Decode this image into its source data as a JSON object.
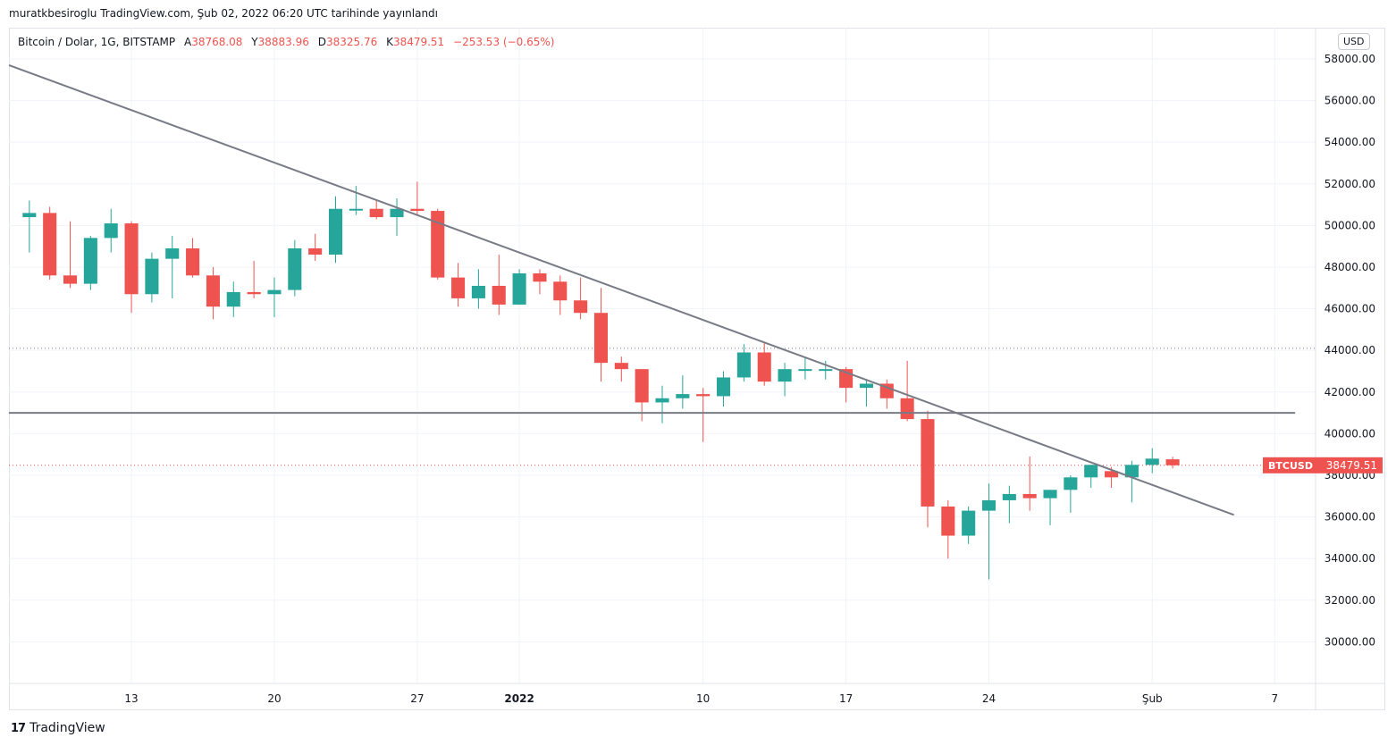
{
  "header": {
    "published": "muratkbesiroglu TradingView.com, Şub 02, 2022 06:20 UTC tarihinde yayınlandı"
  },
  "legend": {
    "symbol": "Bitcoin / Dolar, 1G, BITSTAMP",
    "open_label": "A",
    "open": "38768.08",
    "high_label": "Y",
    "high": "38883.96",
    "low_label": "D",
    "low": "38325.76",
    "close_label": "K",
    "close": "38479.51",
    "change": "−253.53 (−0.65%)"
  },
  "currency_button": "USD",
  "price_tag": {
    "ticker": "BTCUSD",
    "value": "38479.51"
  },
  "footer": {
    "brand": "TradingView",
    "logo_mark": "17"
  },
  "colors": {
    "up": "#26a69a",
    "down": "#ef5350",
    "trendline": "#787b86",
    "grid": "#f0f3fa"
  },
  "chart_data": {
    "type": "candlestick",
    "y_range": [
      28000,
      59500
    ],
    "y_ticks": [
      "30000.00",
      "32000.00",
      "34000.00",
      "36000.00",
      "38000.00",
      "40000.00",
      "42000.00",
      "44000.00",
      "46000.00",
      "48000.00",
      "50000.00",
      "52000.00",
      "54000.00",
      "56000.00",
      "58000.00"
    ],
    "x_range": [
      "2021-12-07",
      "2022-02-09"
    ],
    "x_ticks": [
      {
        "date": "2021-12-13",
        "label": "13",
        "bold": false
      },
      {
        "date": "2021-12-20",
        "label": "20",
        "bold": false
      },
      {
        "date": "2021-12-27",
        "label": "27",
        "bold": false
      },
      {
        "date": "2022-01-01",
        "label": "2022",
        "bold": true
      },
      {
        "date": "2022-01-10",
        "label": "10",
        "bold": false
      },
      {
        "date": "2022-01-17",
        "label": "17",
        "bold": false
      },
      {
        "date": "2022-01-24",
        "label": "24",
        "bold": false
      },
      {
        "date": "2022-02-01",
        "label": "Şub",
        "bold": false
      },
      {
        "date": "2022-02-07",
        "label": "7",
        "bold": false
      }
    ],
    "candles": [
      {
        "d": "2021-12-08",
        "o": 50400,
        "h": 51200,
        "l": 48700,
        "c": 50600
      },
      {
        "d": "2021-12-09",
        "o": 50600,
        "h": 50900,
        "l": 47400,
        "c": 47600
      },
      {
        "d": "2021-12-10",
        "o": 47600,
        "h": 50200,
        "l": 47000,
        "c": 47200
      },
      {
        "d": "2021-12-11",
        "o": 47200,
        "h": 49500,
        "l": 46900,
        "c": 49400
      },
      {
        "d": "2021-12-12",
        "o": 49400,
        "h": 50800,
        "l": 48700,
        "c": 50100
      },
      {
        "d": "2021-12-13",
        "o": 50100,
        "h": 50200,
        "l": 45800,
        "c": 46700
      },
      {
        "d": "2021-12-14",
        "o": 46700,
        "h": 48700,
        "l": 46300,
        "c": 48400
      },
      {
        "d": "2021-12-15",
        "o": 48400,
        "h": 49500,
        "l": 46500,
        "c": 48900
      },
      {
        "d": "2021-12-16",
        "o": 48900,
        "h": 49400,
        "l": 47500,
        "c": 47600
      },
      {
        "d": "2021-12-17",
        "o": 47600,
        "h": 48000,
        "l": 45500,
        "c": 46100
      },
      {
        "d": "2021-12-18",
        "o": 46100,
        "h": 47300,
        "l": 45600,
        "c": 46800
      },
      {
        "d": "2021-12-19",
        "o": 46800,
        "h": 48300,
        "l": 46500,
        "c": 46700
      },
      {
        "d": "2021-12-20",
        "o": 46700,
        "h": 47500,
        "l": 45600,
        "c": 46900
      },
      {
        "d": "2021-12-21",
        "o": 46900,
        "h": 49300,
        "l": 46600,
        "c": 48900
      },
      {
        "d": "2021-12-22",
        "o": 48900,
        "h": 49600,
        "l": 48300,
        "c": 48600
      },
      {
        "d": "2021-12-23",
        "o": 48600,
        "h": 51400,
        "l": 48200,
        "c": 50800
      },
      {
        "d": "2021-12-24",
        "o": 50800,
        "h": 51900,
        "l": 50500,
        "c": 50800
      },
      {
        "d": "2021-12-25",
        "o": 50800,
        "h": 51200,
        "l": 50300,
        "c": 50400
      },
      {
        "d": "2021-12-26",
        "o": 50400,
        "h": 51300,
        "l": 49500,
        "c": 50800
      },
      {
        "d": "2021-12-27",
        "o": 50800,
        "h": 52100,
        "l": 50500,
        "c": 50700
      },
      {
        "d": "2021-12-28",
        "o": 50700,
        "h": 50800,
        "l": 47400,
        "c": 47500
      },
      {
        "d": "2021-12-29",
        "o": 47500,
        "h": 48200,
        "l": 46100,
        "c": 46500
      },
      {
        "d": "2021-12-30",
        "o": 46500,
        "h": 47900,
        "l": 46000,
        "c": 47100
      },
      {
        "d": "2021-12-31",
        "o": 47100,
        "h": 48600,
        "l": 45700,
        "c": 46200
      },
      {
        "d": "2022-01-01",
        "o": 46200,
        "h": 47900,
        "l": 46200,
        "c": 47700
      },
      {
        "d": "2022-01-02",
        "o": 47700,
        "h": 47900,
        "l": 46700,
        "c": 47300
      },
      {
        "d": "2022-01-03",
        "o": 47300,
        "h": 47600,
        "l": 45700,
        "c": 46400
      },
      {
        "d": "2022-01-04",
        "o": 46400,
        "h": 47500,
        "l": 45500,
        "c": 45800
      },
      {
        "d": "2022-01-05",
        "o": 45800,
        "h": 47000,
        "l": 42500,
        "c": 43400
      },
      {
        "d": "2022-01-06",
        "o": 43400,
        "h": 43700,
        "l": 42500,
        "c": 43100
      },
      {
        "d": "2022-01-07",
        "o": 43100,
        "h": 43100,
        "l": 40600,
        "c": 41500
      },
      {
        "d": "2022-01-08",
        "o": 41500,
        "h": 42300,
        "l": 40500,
        "c": 41700
      },
      {
        "d": "2022-01-09",
        "o": 41700,
        "h": 42800,
        "l": 41200,
        "c": 41900
      },
      {
        "d": "2022-01-10",
        "o": 41900,
        "h": 42200,
        "l": 39600,
        "c": 41800
      },
      {
        "d": "2022-01-11",
        "o": 41800,
        "h": 43000,
        "l": 41300,
        "c": 42700
      },
      {
        "d": "2022-01-12",
        "o": 42700,
        "h": 44300,
        "l": 42500,
        "c": 43900
      },
      {
        "d": "2022-01-13",
        "o": 43900,
        "h": 44400,
        "l": 42300,
        "c": 42500
      },
      {
        "d": "2022-01-14",
        "o": 42500,
        "h": 43400,
        "l": 41800,
        "c": 43100
      },
      {
        "d": "2022-01-15",
        "o": 43100,
        "h": 43700,
        "l": 42600,
        "c": 43100
      },
      {
        "d": "2022-01-16",
        "o": 43100,
        "h": 43500,
        "l": 42600,
        "c": 43100
      },
      {
        "d": "2022-01-17",
        "o": 43100,
        "h": 43200,
        "l": 41500,
        "c": 42200
      },
      {
        "d": "2022-01-18",
        "o": 42200,
        "h": 42600,
        "l": 41300,
        "c": 42400
      },
      {
        "d": "2022-01-19",
        "o": 42400,
        "h": 42600,
        "l": 41200,
        "c": 41700
      },
      {
        "d": "2022-01-20",
        "o": 41700,
        "h": 43500,
        "l": 40600,
        "c": 40700
      },
      {
        "d": "2022-01-21",
        "o": 40700,
        "h": 41100,
        "l": 35500,
        "c": 36500
      },
      {
        "d": "2022-01-22",
        "o": 36500,
        "h": 36800,
        "l": 34000,
        "c": 35100
      },
      {
        "d": "2022-01-23",
        "o": 35100,
        "h": 36500,
        "l": 34700,
        "c": 36300
      },
      {
        "d": "2022-01-24",
        "o": 36300,
        "h": 37600,
        "l": 33000,
        "c": 36800
      },
      {
        "d": "2022-01-25",
        "o": 36800,
        "h": 37500,
        "l": 35700,
        "c": 37100
      },
      {
        "d": "2022-01-26",
        "o": 37100,
        "h": 38900,
        "l": 36300,
        "c": 36900
      },
      {
        "d": "2022-01-27",
        "o": 36900,
        "h": 37300,
        "l": 35600,
        "c": 37300
      },
      {
        "d": "2022-01-28",
        "o": 37300,
        "h": 38000,
        "l": 36200,
        "c": 37900
      },
      {
        "d": "2022-01-29",
        "o": 37900,
        "h": 38500,
        "l": 37400,
        "c": 38500
      },
      {
        "d": "2022-01-30",
        "o": 38200,
        "h": 38400,
        "l": 37400,
        "c": 37900
      },
      {
        "d": "2022-01-31",
        "o": 37900,
        "h": 38700,
        "l": 36700,
        "c": 38500
      },
      {
        "d": "2022-02-01",
        "o": 38500,
        "h": 39300,
        "l": 38100,
        "c": 38800
      },
      {
        "d": "2022-02-02",
        "o": 38768.08,
        "h": 38883.96,
        "l": 38325.76,
        "c": 38479.51
      }
    ],
    "drawings": {
      "trendline": {
        "from": {
          "d": "2021-12-07",
          "p": 57700
        },
        "to": {
          "d": "2022-02-05",
          "p": 36100
        }
      },
      "horizontal_level": 41000,
      "dotted_level": 44100,
      "last_price": 38479.51
    }
  }
}
